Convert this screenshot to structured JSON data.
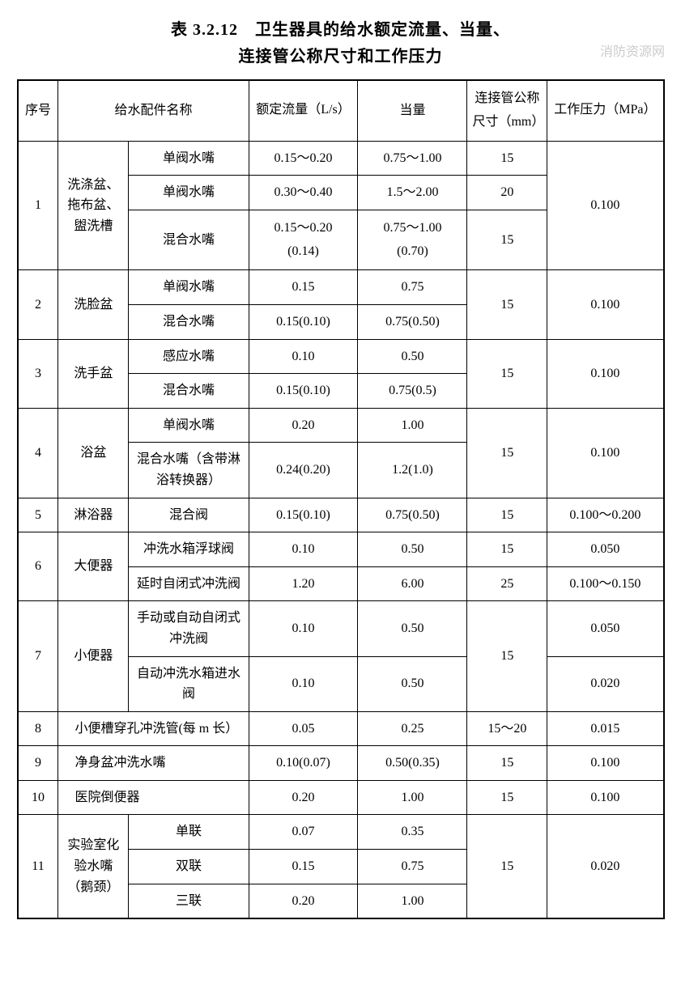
{
  "title_line1": "表 3.2.12　卫生器具的给水额定流量、当量、",
  "title_line2": "连接管公称尺寸和工作压力",
  "watermark": "消防资源网",
  "headers": {
    "seq": "序号",
    "name": "给水配件名称",
    "flow": "额定流量（L/s）",
    "equiv": "当量",
    "pipe": "连接管公称尺寸（mm）",
    "pressure": "工作压力（MPa）"
  },
  "r1": {
    "seq": "1",
    "cat": "洗涤盆、拖布盆、盥洗槽",
    "n1": "单阀水嘴",
    "f1": "0.15～0.20",
    "e1": "0.75～1.00",
    "p1": "15",
    "n2": "单阀水嘴",
    "f2": "0.30～0.40",
    "e2": "1.5～2.00",
    "p2": "20",
    "n3": "混合水嘴",
    "f3a": "0.15～0.20",
    "f3b": "(0.14)",
    "e3a": "0.75～1.00",
    "e3b": "(0.70)",
    "p3": "15",
    "press": "0.100"
  },
  "r2": {
    "seq": "2",
    "cat": "洗脸盆",
    "n1": "单阀水嘴",
    "f1": "0.15",
    "e1": "0.75",
    "n2": "混合水嘴",
    "f2": "0.15(0.10)",
    "e2": "0.75(0.50)",
    "pipe": "15",
    "press": "0.100"
  },
  "r3": {
    "seq": "3",
    "cat": "洗手盆",
    "n1": "感应水嘴",
    "f1": "0.10",
    "e1": "0.50",
    "n2": "混合水嘴",
    "f2": "0.15(0.10)",
    "e2": "0.75(0.5)",
    "pipe": "15",
    "press": "0.100"
  },
  "r4": {
    "seq": "4",
    "cat": "浴盆",
    "n1": "单阀水嘴",
    "f1": "0.20",
    "e1": "1.00",
    "n2": "混合水嘴（含带淋浴转换器）",
    "f2": "0.24(0.20)",
    "e2": "1.2(1.0)",
    "pipe": "15",
    "press": "0.100"
  },
  "r5": {
    "seq": "5",
    "cat": "淋浴器",
    "n": "混合阀",
    "f": "0.15(0.10)",
    "e": "0.75(0.50)",
    "pipe": "15",
    "press": "0.100～0.200"
  },
  "r6": {
    "seq": "6",
    "cat": "大便器",
    "n1": "冲洗水箱浮球阀",
    "f1": "0.10",
    "e1": "0.50",
    "p1": "15",
    "pr1": "0.050",
    "n2": "延时自闭式冲洗阀",
    "f2": "1.20",
    "e2": "6.00",
    "p2": "25",
    "pr2": "0.100～0.150"
  },
  "r7": {
    "seq": "7",
    "cat": "小便器",
    "n1": "手动或自动自闭式冲洗阀",
    "f1": "0.10",
    "e1": "0.50",
    "pr1": "0.050",
    "n2": "自动冲洗水箱进水阀",
    "f2": "0.10",
    "e2": "0.50",
    "pr2": "0.020",
    "pipe": "15"
  },
  "r8": {
    "seq": "8",
    "name": "小便槽穿孔冲洗管(每 m 长）",
    "f": "0.05",
    "e": "0.25",
    "pipe": "15～20",
    "press": "0.015"
  },
  "r9": {
    "seq": "9",
    "name": "净身盆冲洗水嘴",
    "f": "0.10(0.07)",
    "e": "0.50(0.35)",
    "pipe": "15",
    "press": "0.100"
  },
  "r10": {
    "seq": "10",
    "name": "医院倒便器",
    "f": "0.20",
    "e": "1.00",
    "pipe": "15",
    "press": "0.100"
  },
  "r11": {
    "seq": "11",
    "cat": "实验室化验水嘴（鹅颈）",
    "n1": "单联",
    "f1": "0.07",
    "e1": "0.35",
    "n2": "双联",
    "f2": "0.15",
    "e2": "0.75",
    "n3": "三联",
    "f3": "0.20",
    "e3": "1.00",
    "pipe": "15",
    "press": "0.020"
  }
}
